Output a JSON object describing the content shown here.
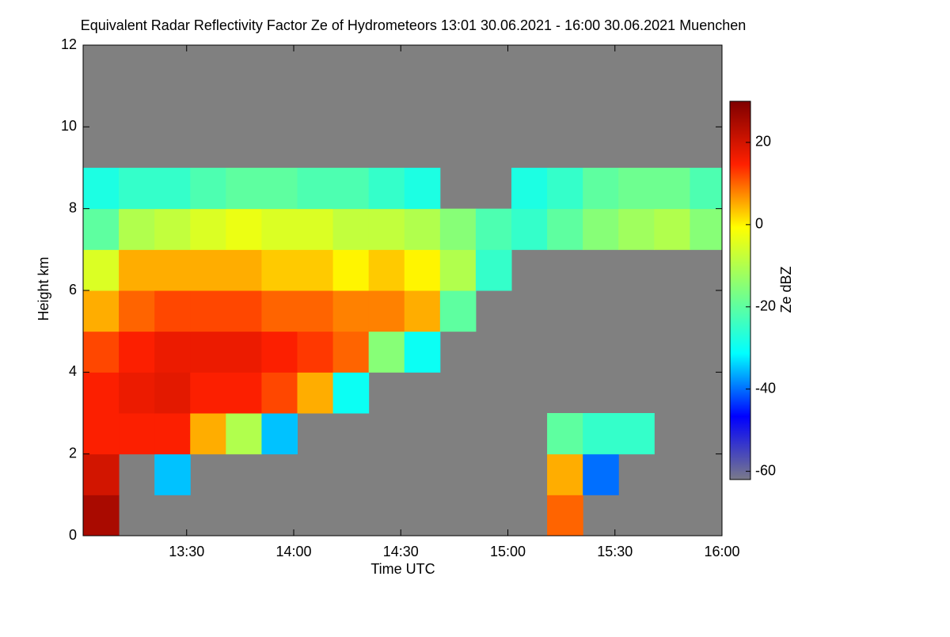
{
  "chart_data": {
    "type": "heatmap",
    "title": "Equivalent Radar Reflectivity Factor Ze of Hydrometeors   13:01 30.06.2021 - 16:00 30.06.2021 Muenchen",
    "x_label": "Time UTC",
    "y_label": "Height km",
    "colorbar_label": "Ze dBZ",
    "x": [
      786,
      796,
      806,
      816,
      826,
      836,
      846,
      856,
      866,
      876,
      886,
      896,
      906,
      916,
      926,
      936,
      946,
      956
    ],
    "y": [
      0.5,
      1.5,
      2.5,
      3.5,
      4.5,
      5.5,
      6.5,
      7.5,
      8.5,
      9.5,
      10.5,
      11.5
    ],
    "z": [
      [
        25,
        null,
        null,
        null,
        null,
        null,
        null,
        null,
        null,
        null,
        null,
        null,
        null,
        10,
        null,
        null,
        null,
        null
      ],
      [
        20,
        null,
        -35,
        null,
        null,
        null,
        null,
        null,
        null,
        null,
        null,
        null,
        null,
        5,
        -40,
        null,
        null,
        null
      ],
      [
        15,
        15,
        15,
        5,
        -10,
        -35,
        null,
        null,
        null,
        null,
        null,
        null,
        null,
        -20,
        -25,
        -25,
        null,
        null
      ],
      [
        15,
        17,
        18,
        15,
        15,
        12,
        5,
        -30,
        null,
        null,
        null,
        null,
        null,
        null,
        null,
        null,
        null,
        null
      ],
      [
        12,
        15,
        17,
        17,
        17,
        15,
        13,
        10,
        -15,
        -30,
        null,
        null,
        null,
        null,
        null,
        null,
        null,
        null
      ],
      [
        5,
        10,
        12,
        12,
        12,
        10,
        10,
        8,
        8,
        5,
        -20,
        null,
        null,
        null,
        null,
        null,
        null,
        null
      ],
      [
        -5,
        5,
        5,
        5,
        5,
        3,
        3,
        0,
        3,
        0,
        -10,
        -25,
        null,
        null,
        null,
        null,
        null,
        null
      ],
      [
        -20,
        -10,
        -8,
        -5,
        -3,
        -5,
        -5,
        -8,
        -8,
        -10,
        -15,
        -22,
        -25,
        -20,
        -15,
        -12,
        -10,
        -15
      ],
      [
        -28,
        -25,
        -25,
        -22,
        -20,
        -20,
        -22,
        -22,
        -25,
        -28,
        null,
        null,
        -28,
        -25,
        -20,
        -18,
        -18,
        -22
      ],
      [
        null,
        null,
        null,
        null,
        null,
        null,
        null,
        null,
        null,
        null,
        null,
        null,
        null,
        null,
        null,
        null,
        null,
        null
      ],
      [
        null,
        null,
        null,
        null,
        null,
        null,
        null,
        null,
        null,
        null,
        null,
        null,
        null,
        null,
        null,
        null,
        null,
        null
      ],
      [
        null,
        null,
        null,
        null,
        null,
        null,
        null,
        null,
        null,
        null,
        null,
        null,
        null,
        null,
        null,
        null,
        null,
        null
      ]
    ],
    "xlim": [
      781,
      960
    ],
    "xticks": [
      {
        "value": 810,
        "label": "13:30"
      },
      {
        "value": 840,
        "label": "14:00"
      },
      {
        "value": 870,
        "label": "14:30"
      },
      {
        "value": 900,
        "label": "15:00"
      },
      {
        "value": 930,
        "label": "15:30"
      },
      {
        "value": 960,
        "label": "16:00"
      }
    ],
    "ylim": [
      0,
      12
    ],
    "yticks": [
      0,
      2,
      4,
      6,
      8,
      10,
      12
    ],
    "clim": [
      -62,
      30
    ],
    "cticks": [
      -60,
      -40,
      -20,
      0,
      20
    ],
    "colormap": [
      "#7a7a8a",
      "#0000ff",
      "#00ffff",
      "#7fff7f",
      "#ffff00",
      "#ff2000",
      "#7f0000"
    ],
    "background": "#808080"
  }
}
